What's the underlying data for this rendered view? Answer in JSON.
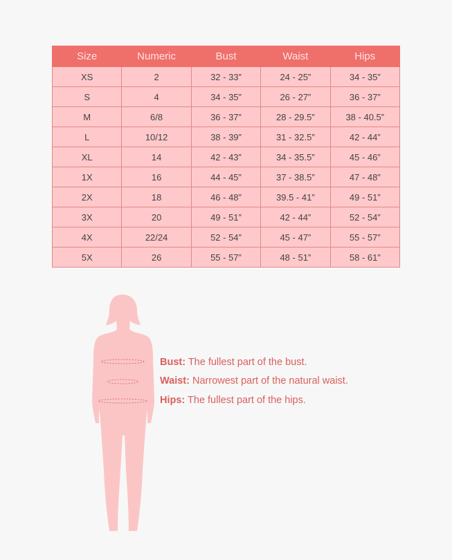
{
  "size_chart": {
    "columns": [
      "Size",
      "Numeric",
      "Bust",
      "Waist",
      "Hips"
    ],
    "rows": [
      [
        "XS",
        "2",
        "32  -  33”",
        "24 - 25”",
        "34 - 35”"
      ],
      [
        "S",
        "4",
        "34 - 35”",
        "26 - 27”",
        "36 - 37”"
      ],
      [
        "M",
        "6/8",
        "36 - 37”",
        "28 - 29.5”",
        "38 - 40.5”"
      ],
      [
        "L",
        "10/12",
        "38 - 39”",
        "31 - 32.5”",
        "42 - 44”"
      ],
      [
        "XL",
        "14",
        "42 - 43”",
        "34 - 35.5”",
        "45 - 46”"
      ],
      [
        "1X",
        "16",
        "44 - 45”",
        "37 - 38.5”",
        "47 - 48”"
      ],
      [
        "2X",
        "18",
        "46 - 48”",
        "39.5 - 41”",
        "49 - 51”"
      ],
      [
        "3X",
        "20",
        "49 - 51”",
        "42 - 44”",
        "52 - 54”"
      ],
      [
        "4X",
        "22/24",
        "52 - 54”",
        "45 - 47”",
        "55 - 57”"
      ],
      [
        "5X",
        "26",
        "55 - 57”",
        "48 - 51”",
        "58 - 61”"
      ]
    ]
  },
  "legend": [
    {
      "term": "Bust:",
      "desc": " The fullest part of the bust."
    },
    {
      "term": "Waist:",
      "desc": " Narrowest part of the natural waist."
    },
    {
      "term": "Hips:",
      "desc": " The fullest part of the hips."
    }
  ],
  "colors": {
    "header": "#ef6f6b",
    "cell": "#ffc9cb",
    "figure": "#fbc5c6",
    "legend_text": "#d9605e"
  }
}
